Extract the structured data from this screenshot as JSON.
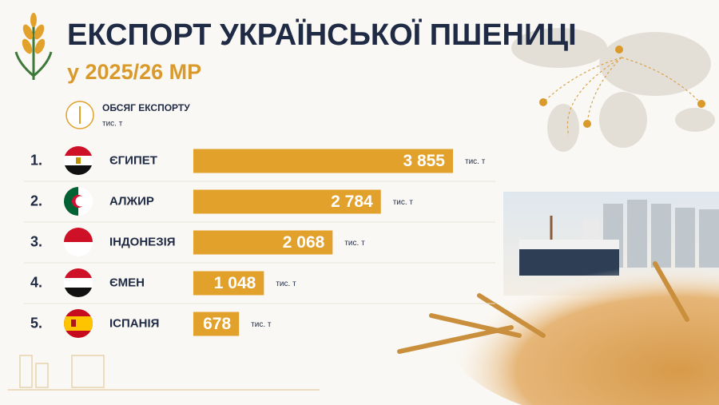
{
  "chart_data": {
    "type": "hbar",
    "title": "ЕКСПОРТ УКРАЇНСЬКОЇ ПШЕНИЦІ",
    "subtitle": "у 2025/26 МР",
    "legend": {
      "label": "ОБСЯГ ЕКСПОРТУ",
      "unit": "тис. т"
    },
    "ranks": [
      "1.",
      "2.",
      "3.",
      "4.",
      "5."
    ],
    "categories": [
      "ЄГИПЕТ",
      "АЛЖИР",
      "ІНДОНЕЗІЯ",
      "ЄМЕН",
      "ІСПАНІЯ"
    ],
    "values": [
      3855,
      2784,
      2068,
      1048,
      678
    ],
    "value_labels": [
      "3 855",
      "2 784",
      "2 068",
      "1 048",
      "678"
    ],
    "unit": "тис. т",
    "color": "#e2a12b"
  }
}
